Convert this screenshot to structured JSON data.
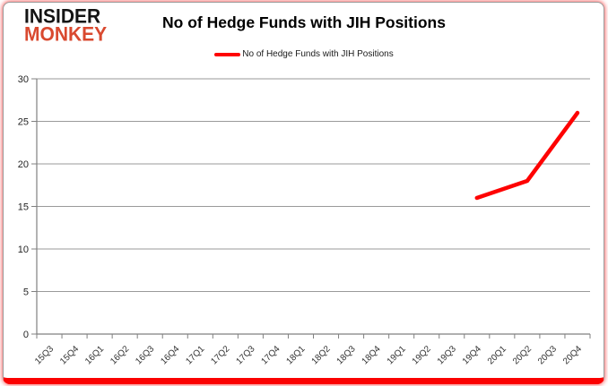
{
  "logo": {
    "line1": "INSIDER",
    "line2": "MONKEY"
  },
  "header": {
    "title": "No of Hedge Funds with JIH Positions"
  },
  "legend": {
    "label": "No of Hedge Funds with JIH Positions",
    "marker_color": "#fe0202"
  },
  "colors": {
    "line_red": "#fe0202",
    "logo_red": "#d9492f",
    "bottom_bar_red": "#fb0101",
    "gridline_gray": "#9a9a9a",
    "axis_gray": "#808080",
    "tick_label": "#333333"
  },
  "chart_data": {
    "type": "line",
    "title": "No of Hedge Funds with JIH Positions",
    "categories": [
      "15Q3",
      "15Q4",
      "16Q1",
      "16Q2",
      "16Q3",
      "16Q4",
      "17Q1",
      "17Q2",
      "17Q3",
      "17Q4",
      "18Q1",
      "18Q2",
      "18Q3",
      "18Q4",
      "19Q1",
      "19Q2",
      "19Q3",
      "19Q4",
      "20Q1",
      "20Q2",
      "20Q3",
      "20Q4"
    ],
    "series": [
      {
        "name": "No of Hedge Funds with JIH Positions",
        "color": "#fe0202",
        "values": [
          null,
          null,
          null,
          null,
          null,
          null,
          null,
          null,
          null,
          null,
          null,
          null,
          null,
          null,
          null,
          null,
          null,
          16,
          17,
          18,
          22,
          26
        ]
      }
    ],
    "xlabel": "",
    "ylabel": "",
    "ylim": [
      0,
      30
    ],
    "ytick_interval": 5,
    "grid": true,
    "legend_position": "top"
  }
}
